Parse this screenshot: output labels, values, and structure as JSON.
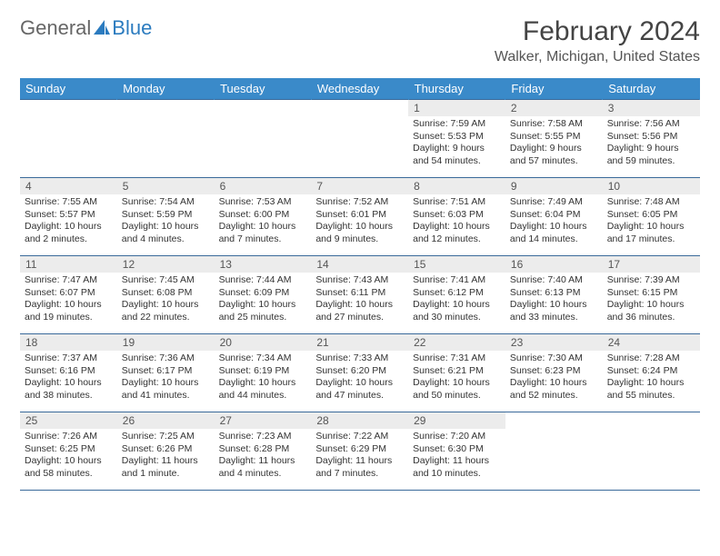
{
  "logo": {
    "general": "General",
    "blue": "Blue"
  },
  "title": {
    "month": "February 2024",
    "location": "Walker, Michigan, United States"
  },
  "colors": {
    "header_bg": "#3a8ac9",
    "header_text": "#ffffff",
    "daynum_bg": "#ececec",
    "border": "#3a6a9a",
    "logo_blue": "#2b7bbf"
  },
  "weekdays": [
    "Sunday",
    "Monday",
    "Tuesday",
    "Wednesday",
    "Thursday",
    "Friday",
    "Saturday"
  ],
  "weeks": [
    [
      null,
      null,
      null,
      null,
      {
        "num": "1",
        "sunrise": "Sunrise: 7:59 AM",
        "sunset": "Sunset: 5:53 PM",
        "daylight": "Daylight: 9 hours and 54 minutes."
      },
      {
        "num": "2",
        "sunrise": "Sunrise: 7:58 AM",
        "sunset": "Sunset: 5:55 PM",
        "daylight": "Daylight: 9 hours and 57 minutes."
      },
      {
        "num": "3",
        "sunrise": "Sunrise: 7:56 AM",
        "sunset": "Sunset: 5:56 PM",
        "daylight": "Daylight: 9 hours and 59 minutes."
      }
    ],
    [
      {
        "num": "4",
        "sunrise": "Sunrise: 7:55 AM",
        "sunset": "Sunset: 5:57 PM",
        "daylight": "Daylight: 10 hours and 2 minutes."
      },
      {
        "num": "5",
        "sunrise": "Sunrise: 7:54 AM",
        "sunset": "Sunset: 5:59 PM",
        "daylight": "Daylight: 10 hours and 4 minutes."
      },
      {
        "num": "6",
        "sunrise": "Sunrise: 7:53 AM",
        "sunset": "Sunset: 6:00 PM",
        "daylight": "Daylight: 10 hours and 7 minutes."
      },
      {
        "num": "7",
        "sunrise": "Sunrise: 7:52 AM",
        "sunset": "Sunset: 6:01 PM",
        "daylight": "Daylight: 10 hours and 9 minutes."
      },
      {
        "num": "8",
        "sunrise": "Sunrise: 7:51 AM",
        "sunset": "Sunset: 6:03 PM",
        "daylight": "Daylight: 10 hours and 12 minutes."
      },
      {
        "num": "9",
        "sunrise": "Sunrise: 7:49 AM",
        "sunset": "Sunset: 6:04 PM",
        "daylight": "Daylight: 10 hours and 14 minutes."
      },
      {
        "num": "10",
        "sunrise": "Sunrise: 7:48 AM",
        "sunset": "Sunset: 6:05 PM",
        "daylight": "Daylight: 10 hours and 17 minutes."
      }
    ],
    [
      {
        "num": "11",
        "sunrise": "Sunrise: 7:47 AM",
        "sunset": "Sunset: 6:07 PM",
        "daylight": "Daylight: 10 hours and 19 minutes."
      },
      {
        "num": "12",
        "sunrise": "Sunrise: 7:45 AM",
        "sunset": "Sunset: 6:08 PM",
        "daylight": "Daylight: 10 hours and 22 minutes."
      },
      {
        "num": "13",
        "sunrise": "Sunrise: 7:44 AM",
        "sunset": "Sunset: 6:09 PM",
        "daylight": "Daylight: 10 hours and 25 minutes."
      },
      {
        "num": "14",
        "sunrise": "Sunrise: 7:43 AM",
        "sunset": "Sunset: 6:11 PM",
        "daylight": "Daylight: 10 hours and 27 minutes."
      },
      {
        "num": "15",
        "sunrise": "Sunrise: 7:41 AM",
        "sunset": "Sunset: 6:12 PM",
        "daylight": "Daylight: 10 hours and 30 minutes."
      },
      {
        "num": "16",
        "sunrise": "Sunrise: 7:40 AM",
        "sunset": "Sunset: 6:13 PM",
        "daylight": "Daylight: 10 hours and 33 minutes."
      },
      {
        "num": "17",
        "sunrise": "Sunrise: 7:39 AM",
        "sunset": "Sunset: 6:15 PM",
        "daylight": "Daylight: 10 hours and 36 minutes."
      }
    ],
    [
      {
        "num": "18",
        "sunrise": "Sunrise: 7:37 AM",
        "sunset": "Sunset: 6:16 PM",
        "daylight": "Daylight: 10 hours and 38 minutes."
      },
      {
        "num": "19",
        "sunrise": "Sunrise: 7:36 AM",
        "sunset": "Sunset: 6:17 PM",
        "daylight": "Daylight: 10 hours and 41 minutes."
      },
      {
        "num": "20",
        "sunrise": "Sunrise: 7:34 AM",
        "sunset": "Sunset: 6:19 PM",
        "daylight": "Daylight: 10 hours and 44 minutes."
      },
      {
        "num": "21",
        "sunrise": "Sunrise: 7:33 AM",
        "sunset": "Sunset: 6:20 PM",
        "daylight": "Daylight: 10 hours and 47 minutes."
      },
      {
        "num": "22",
        "sunrise": "Sunrise: 7:31 AM",
        "sunset": "Sunset: 6:21 PM",
        "daylight": "Daylight: 10 hours and 50 minutes."
      },
      {
        "num": "23",
        "sunrise": "Sunrise: 7:30 AM",
        "sunset": "Sunset: 6:23 PM",
        "daylight": "Daylight: 10 hours and 52 minutes."
      },
      {
        "num": "24",
        "sunrise": "Sunrise: 7:28 AM",
        "sunset": "Sunset: 6:24 PM",
        "daylight": "Daylight: 10 hours and 55 minutes."
      }
    ],
    [
      {
        "num": "25",
        "sunrise": "Sunrise: 7:26 AM",
        "sunset": "Sunset: 6:25 PM",
        "daylight": "Daylight: 10 hours and 58 minutes."
      },
      {
        "num": "26",
        "sunrise": "Sunrise: 7:25 AM",
        "sunset": "Sunset: 6:26 PM",
        "daylight": "Daylight: 11 hours and 1 minute."
      },
      {
        "num": "27",
        "sunrise": "Sunrise: 7:23 AM",
        "sunset": "Sunset: 6:28 PM",
        "daylight": "Daylight: 11 hours and 4 minutes."
      },
      {
        "num": "28",
        "sunrise": "Sunrise: 7:22 AM",
        "sunset": "Sunset: 6:29 PM",
        "daylight": "Daylight: 11 hours and 7 minutes."
      },
      {
        "num": "29",
        "sunrise": "Sunrise: 7:20 AM",
        "sunset": "Sunset: 6:30 PM",
        "daylight": "Daylight: 11 hours and 10 minutes."
      },
      null,
      null
    ]
  ]
}
